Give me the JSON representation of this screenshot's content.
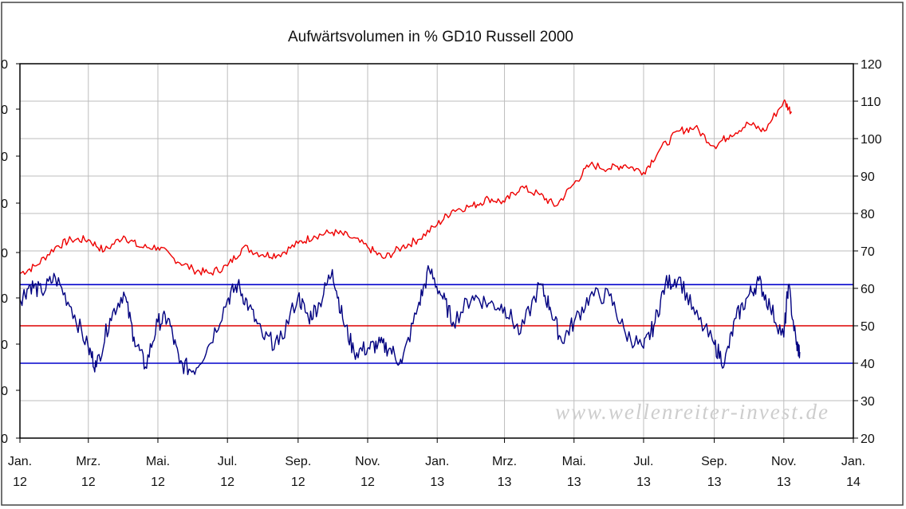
{
  "chart_data": {
    "type": "line",
    "title": "Aufwärtsvolumen in % GD10 Russell 2000",
    "watermark": "www.wellenreiter-invest.de",
    "x_ticks": [
      {
        "month": "Jan.",
        "year": "12",
        "date": "2012-01-01"
      },
      {
        "month": "Mrz.",
        "year": "12",
        "date": "2012-03-01"
      },
      {
        "month": "Mai.",
        "year": "12",
        "date": "2012-05-01"
      },
      {
        "month": "Jul.",
        "year": "12",
        "date": "2012-07-01"
      },
      {
        "month": "Sep.",
        "year": "12",
        "date": "2012-09-01"
      },
      {
        "month": "Nov.",
        "year": "12",
        "date": "2012-11-01"
      },
      {
        "month": "Jan.",
        "year": "13",
        "date": "2013-01-01"
      },
      {
        "month": "Mrz.",
        "year": "13",
        "date": "2013-03-01"
      },
      {
        "month": "Mai.",
        "year": "13",
        "date": "2013-05-01"
      },
      {
        "month": "Jul.",
        "year": "13",
        "date": "2013-07-01"
      },
      {
        "month": "Sep.",
        "year": "13",
        "date": "2013-09-01"
      },
      {
        "month": "Nov.",
        "year": "13",
        "date": "2013-11-01"
      },
      {
        "month": "Jan.",
        "year": "14",
        "date": "2014-01-01"
      }
    ],
    "xlim": [
      "2012-01-01",
      "2014-01-01"
    ],
    "y_right": {
      "ticks": [
        "120",
        "110",
        "100",
        "90",
        "80",
        "70",
        "60",
        "50",
        "40",
        "30",
        "20"
      ],
      "ylim": [
        20,
        120
      ]
    },
    "y_left": {
      "ticks": [
        "0",
        "0",
        "0",
        "0",
        "0",
        "0",
        "0",
        "0",
        "0"
      ]
    },
    "grid": true,
    "reference_lines": [
      {
        "value": 61,
        "color": "#0000cc"
      },
      {
        "value": 50,
        "color": "#dd0000"
      },
      {
        "value": 40,
        "color": "#0000cc"
      }
    ],
    "series": [
      {
        "color": "#ee0000",
        "points": [
          [
            "2012-01-01",
            64
          ],
          [
            "2012-01-15",
            66
          ],
          [
            "2012-02-01",
            71
          ],
          [
            "2012-02-15",
            73
          ],
          [
            "2012-03-01",
            73
          ],
          [
            "2012-03-15",
            70
          ],
          [
            "2012-04-01",
            74
          ],
          [
            "2012-04-15",
            71
          ],
          [
            "2012-05-01",
            71
          ],
          [
            "2012-05-15",
            68
          ],
          [
            "2012-06-01",
            65
          ],
          [
            "2012-06-15",
            64
          ],
          [
            "2012-07-01",
            66
          ],
          [
            "2012-07-15",
            71
          ],
          [
            "2012-08-01",
            69
          ],
          [
            "2012-08-15",
            69
          ],
          [
            "2012-09-01",
            72
          ],
          [
            "2012-09-15",
            74
          ],
          [
            "2012-10-01",
            75
          ],
          [
            "2012-10-15",
            74
          ],
          [
            "2012-11-01",
            71
          ],
          [
            "2012-11-15",
            68
          ],
          [
            "2012-12-01",
            71
          ],
          [
            "2012-12-15",
            73
          ],
          [
            "2013-01-01",
            77
          ],
          [
            "2013-01-15",
            81
          ],
          [
            "2013-02-01",
            82
          ],
          [
            "2013-02-15",
            84
          ],
          [
            "2013-03-01",
            83
          ],
          [
            "2013-03-15",
            87
          ],
          [
            "2013-04-01",
            85
          ],
          [
            "2013-04-15",
            82
          ],
          [
            "2013-05-01",
            88
          ],
          [
            "2013-05-15",
            93
          ],
          [
            "2013-06-01",
            92
          ],
          [
            "2013-06-15",
            93
          ],
          [
            "2013-07-01",
            91
          ],
          [
            "2013-07-15",
            97
          ],
          [
            "2013-08-01",
            102
          ],
          [
            "2013-08-15",
            103
          ],
          [
            "2013-09-01",
            98
          ],
          [
            "2013-09-15",
            101
          ],
          [
            "2013-10-01",
            104
          ],
          [
            "2013-10-15",
            102
          ],
          [
            "2013-11-01",
            110
          ],
          [
            "2013-11-08",
            107
          ]
        ]
      },
      {
        "color": "#000080",
        "points": [
          [
            "2012-01-01",
            57
          ],
          [
            "2012-01-10",
            61
          ],
          [
            "2012-01-20",
            59
          ],
          [
            "2012-02-01",
            63
          ],
          [
            "2012-02-15",
            55
          ],
          [
            "2012-03-01",
            44
          ],
          [
            "2012-03-08",
            39
          ],
          [
            "2012-03-20",
            52
          ],
          [
            "2012-04-01",
            59
          ],
          [
            "2012-04-10",
            47
          ],
          [
            "2012-04-20",
            39
          ],
          [
            "2012-05-01",
            51
          ],
          [
            "2012-05-10",
            52
          ],
          [
            "2012-05-20",
            40
          ],
          [
            "2012-06-01",
            38
          ],
          [
            "2012-06-15",
            45
          ],
          [
            "2012-07-01",
            57
          ],
          [
            "2012-07-10",
            61
          ],
          [
            "2012-07-20",
            55
          ],
          [
            "2012-08-01",
            47
          ],
          [
            "2012-08-15",
            45
          ],
          [
            "2012-09-01",
            58
          ],
          [
            "2012-09-10",
            52
          ],
          [
            "2012-09-20",
            56
          ],
          [
            "2012-10-01",
            65
          ],
          [
            "2012-10-10",
            52
          ],
          [
            "2012-10-20",
            43
          ],
          [
            "2012-11-01",
            44
          ],
          [
            "2012-11-10",
            45
          ],
          [
            "2012-11-20",
            44
          ],
          [
            "2012-12-01",
            40
          ],
          [
            "2012-12-15",
            55
          ],
          [
            "2012-12-25",
            65
          ],
          [
            "2013-01-05",
            58
          ],
          [
            "2013-01-15",
            51
          ],
          [
            "2013-02-01",
            58
          ],
          [
            "2013-02-15",
            56
          ],
          [
            "2013-03-01",
            55
          ],
          [
            "2013-03-15",
            48
          ],
          [
            "2013-04-01",
            61
          ],
          [
            "2013-04-10",
            55
          ],
          [
            "2013-04-20",
            46
          ],
          [
            "2013-05-01",
            51
          ],
          [
            "2013-05-15",
            58
          ],
          [
            "2013-06-01",
            58
          ],
          [
            "2013-06-15",
            48
          ],
          [
            "2013-07-01",
            44
          ],
          [
            "2013-07-10",
            50
          ],
          [
            "2013-07-20",
            61
          ],
          [
            "2013-08-01",
            63
          ],
          [
            "2013-08-15",
            53
          ],
          [
            "2013-09-01",
            45
          ],
          [
            "2013-09-10",
            40
          ],
          [
            "2013-09-20",
            52
          ],
          [
            "2013-10-01",
            58
          ],
          [
            "2013-10-10",
            62
          ],
          [
            "2013-10-20",
            55
          ],
          [
            "2013-11-01",
            47
          ],
          [
            "2013-11-05",
            61
          ],
          [
            "2013-11-12",
            45
          ],
          [
            "2013-11-15",
            43
          ]
        ]
      }
    ]
  }
}
